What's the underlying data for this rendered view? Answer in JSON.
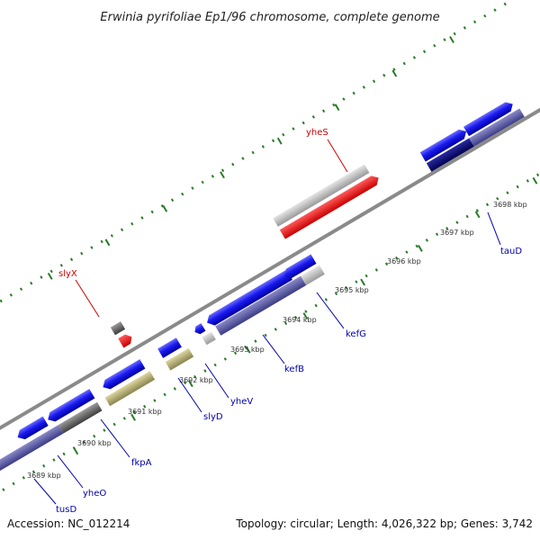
{
  "title": "Erwinia pyrifoliae Ep1/96 chromosome, complete genome",
  "footer": {
    "accession": "Accession: NC_012214",
    "summary": "Topology: circular; Length: 4,026,322 bp; Genes: 3,742"
  },
  "ticks": [
    "3689 kbp",
    "3690 kbp",
    "3691 kbp",
    "3692 kbp",
    "3693 kbp",
    "3694 kbp",
    "3695 kbp",
    "3696 kbp",
    "3697 kbp",
    "3698 kbp"
  ],
  "labels": {
    "yheS": "yheS",
    "slyX": "slyX",
    "kefG": "kefG",
    "kefB": "kefB",
    "yheV": "yheV",
    "slyD": "slyD",
    "fkpA": "fkpA",
    "yheO": "yheO",
    "tusD": "tusD",
    "tauD": "tauD"
  },
  "colors": {
    "cds": "#1010e0",
    "cds_dark": "#00007a",
    "feature_band": "#5a5aa2",
    "highlight": "#ff0000",
    "rna": "#b8b070",
    "pseudo_grey": "#bdbdbd",
    "dark_grey": "#666666",
    "backbone": "#8a8a8a",
    "tick": "#2a7a2a",
    "label_red": "#cc0000",
    "label_blue": "#0000aa"
  }
}
